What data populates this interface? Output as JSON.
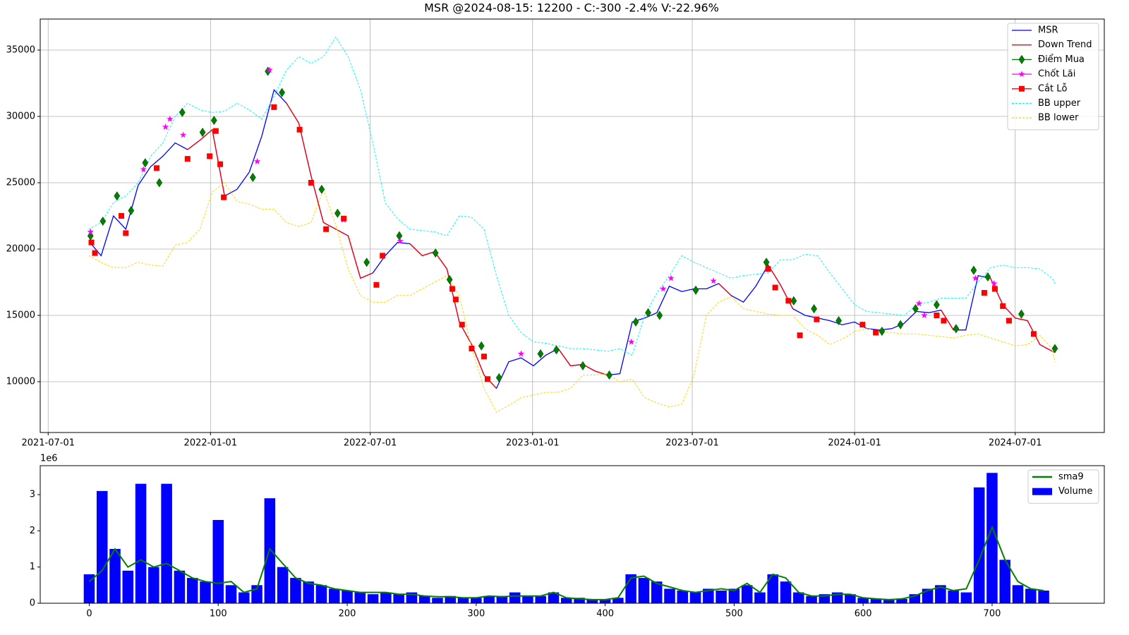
{
  "chart_data": [
    {
      "type": "line",
      "title": "MSR @2024-08-15: 12200 - C:-300 -2.4% V:-22.96%",
      "x": [
        "2021-08-16",
        "2021-08-30",
        "2021-09-13",
        "2021-09-27",
        "2021-10-11",
        "2021-10-25",
        "2021-11-08",
        "2021-11-22",
        "2021-12-06",
        "2021-12-20",
        "2022-01-03",
        "2022-01-17",
        "2022-01-31",
        "2022-02-14",
        "2022-02-28",
        "2022-03-14",
        "2022-03-28",
        "2022-04-11",
        "2022-04-25",
        "2022-05-09",
        "2022-05-23",
        "2022-06-06",
        "2022-06-20",
        "2022-07-04",
        "2022-07-18",
        "2022-08-01",
        "2022-08-15",
        "2022-08-29",
        "2022-09-12",
        "2022-09-26",
        "2022-10-10",
        "2022-10-24",
        "2022-11-07",
        "2022-11-21",
        "2022-12-05",
        "2022-12-19",
        "2023-01-02",
        "2023-01-16",
        "2023-01-30",
        "2023-02-13",
        "2023-02-27",
        "2023-03-13",
        "2023-03-27",
        "2023-04-10",
        "2023-04-24",
        "2023-05-08",
        "2023-05-22",
        "2023-06-05",
        "2023-06-19",
        "2023-07-03",
        "2023-07-17",
        "2023-07-31",
        "2023-08-14",
        "2023-08-28",
        "2023-09-11",
        "2023-09-25",
        "2023-10-09",
        "2023-10-23",
        "2023-11-06",
        "2023-11-20",
        "2023-12-04",
        "2023-12-18",
        "2024-01-01",
        "2024-01-15",
        "2024-01-29",
        "2024-02-12",
        "2024-02-26",
        "2024-03-11",
        "2024-03-25",
        "2024-04-08",
        "2024-04-22",
        "2024-05-06",
        "2024-05-20",
        "2024-06-03",
        "2024-06-17",
        "2024-07-01",
        "2024-07-15",
        "2024-07-29",
        "2024-08-12",
        "2024-08-15"
      ],
      "series": [
        {
          "name": "MSR",
          "kind": "line",
          "color": "#0000ff",
          "values": [
            20600,
            19500,
            22500,
            21500,
            24800,
            26200,
            27000,
            28000,
            27500,
            28200,
            29000,
            24000,
            24500,
            25800,
            28500,
            32000,
            31000,
            29500,
            25500,
            22000,
            21500,
            21000,
            17800,
            18200,
            19500,
            20500,
            20400,
            19500,
            19800,
            18500,
            14500,
            12800,
            10500,
            9500,
            11500,
            11800,
            11200,
            12000,
            12500,
            11200,
            11300,
            10800,
            10500,
            10600,
            14500,
            14800,
            15200,
            17200,
            16800,
            17000,
            17000,
            17400,
            16500,
            16000,
            17200,
            18800,
            17300,
            15500,
            15000,
            14800,
            14600,
            14300,
            14500,
            14000,
            13900,
            14000,
            14400,
            15300,
            15200,
            15400,
            13900,
            13900,
            18000,
            17800,
            15800,
            14800,
            14600,
            12800,
            12300,
            12200
          ]
        },
        {
          "name": "Down Trend",
          "kind": "line",
          "color": "#ff0000",
          "values": [
            null,
            null,
            null,
            null,
            null,
            null,
            null,
            null,
            27500,
            28200,
            29000,
            24000,
            null,
            null,
            null,
            null,
            31000,
            29500,
            25500,
            22000,
            21500,
            21000,
            17800,
            18200,
            null,
            null,
            20400,
            19500,
            19800,
            18500,
            14500,
            12800,
            10500,
            9500,
            null,
            null,
            null,
            null,
            12500,
            11200,
            11300,
            10800,
            10500,
            null,
            null,
            null,
            null,
            null,
            null,
            null,
            null,
            17400,
            16500,
            null,
            null,
            18800,
            17300,
            15500,
            null,
            null,
            null,
            null,
            null,
            null,
            null,
            null,
            null,
            null,
            null,
            15400,
            13900,
            null,
            null,
            17800,
            15800,
            14800,
            14600,
            12800,
            12300,
            12200
          ]
        },
        {
          "name": "Điểm Mua",
          "kind": "scatter",
          "marker": "diamond",
          "color": "#008000",
          "x": [
            "2021-08-18",
            "2021-09-01",
            "2021-09-17",
            "2021-10-03",
            "2021-10-19",
            "2021-11-04",
            "2021-11-30",
            "2021-12-23",
            "2022-01-05",
            "2022-02-18",
            "2022-03-07",
            "2022-03-23",
            "2022-05-07",
            "2022-05-25",
            "2022-06-27",
            "2022-08-03",
            "2022-09-13",
            "2022-09-29",
            "2022-11-04",
            "2022-11-24",
            "2023-01-10",
            "2023-01-28",
            "2023-02-27",
            "2023-03-29",
            "2023-04-28",
            "2023-05-12",
            "2023-05-25",
            "2023-07-05",
            "2023-09-23",
            "2023-10-24",
            "2023-11-16",
            "2023-12-14",
            "2024-02-01",
            "2024-02-22",
            "2024-03-10",
            "2024-04-03",
            "2024-04-25",
            "2024-05-15",
            "2024-05-31",
            "2024-07-08",
            "2024-08-15"
          ],
          "values": [
            21000,
            22100,
            24000,
            22900,
            26500,
            25000,
            30300,
            28800,
            29700,
            25400,
            33400,
            31800,
            24500,
            22700,
            19000,
            21000,
            19700,
            17700,
            12700,
            10300,
            12100,
            12400,
            11200,
            10500,
            14500,
            15200,
            15000,
            16900,
            19000,
            16100,
            15500,
            14600,
            13800,
            14300,
            15500,
            15800,
            14000,
            18400,
            17900,
            15100,
            12500
          ]
        },
        {
          "name": "Chốt Lãi",
          "kind": "scatter",
          "marker": "star",
          "color": "#ff00ff",
          "x": [
            "2021-08-18",
            "2021-10-17",
            "2021-11-11",
            "2021-11-16",
            "2021-12-01",
            "2022-02-23",
            "2022-03-09",
            "2022-06-01",
            "2022-08-04",
            "2022-12-19",
            "2023-04-23",
            "2023-05-29",
            "2023-06-07",
            "2023-07-25",
            "2024-03-14",
            "2024-03-20",
            "2024-05-17",
            "2024-06-07"
          ],
          "values": [
            21300,
            26000,
            29200,
            29800,
            28600,
            26600,
            33500,
            22200,
            20600,
            12100,
            13000,
            17000,
            17800,
            17600,
            15900,
            15000,
            17800,
            17400
          ]
        },
        {
          "name": "Cắt Lỗ",
          "kind": "scatter",
          "marker": "square",
          "color": "#ff0000",
          "x": [
            "2021-08-19",
            "2021-08-23",
            "2021-09-22",
            "2021-09-27",
            "2021-11-01",
            "2021-12-06",
            "2021-12-31",
            "2022-01-07",
            "2022-01-12",
            "2022-01-16",
            "2022-03-14",
            "2022-04-12",
            "2022-04-25",
            "2022-05-12",
            "2022-06-01",
            "2022-07-08",
            "2022-07-15",
            "2022-10-02",
            "2022-10-06",
            "2022-10-13",
            "2022-10-24",
            "2022-11-07",
            "2022-11-11",
            "2023-09-25",
            "2023-10-03",
            "2023-10-18",
            "2023-10-31",
            "2023-11-19",
            "2024-01-10",
            "2024-01-25",
            "2024-04-03",
            "2024-04-11",
            "2024-05-27",
            "2024-06-08",
            "2024-06-17",
            "2024-06-24",
            "2024-07-22"
          ],
          "values": [
            20500,
            19700,
            22500,
            21200,
            26100,
            26800,
            27000,
            28900,
            26400,
            23900,
            30700,
            29000,
            25000,
            21500,
            22300,
            17300,
            19500,
            17000,
            16200,
            14300,
            12500,
            11900,
            10200,
            18500,
            17100,
            16100,
            13500,
            14700,
            14300,
            13700,
            15000,
            14600,
            16700,
            17000,
            15700,
            14600,
            13600
          ]
        },
        {
          "name": "BB upper",
          "kind": "line",
          "style": "dashed",
          "color": "#00ffff",
          "values": [
            21500,
            22000,
            23500,
            24000,
            25000,
            27000,
            28000,
            30000,
            31000,
            30500,
            30300,
            30400,
            31000,
            30500,
            29800,
            31500,
            33500,
            34500,
            34000,
            34500,
            36000,
            34500,
            32000,
            28000,
            23500,
            22300,
            21500,
            21400,
            21300,
            21000,
            22500,
            22400,
            21500,
            18000,
            15000,
            13700,
            13000,
            12900,
            12700,
            12500,
            12500,
            12400,
            12300,
            12500,
            12000,
            15000,
            16700,
            18000,
            19500,
            19000,
            18600,
            18200,
            17800,
            18000,
            18100,
            18200,
            19200,
            19200,
            19600,
            19500,
            18200,
            17000,
            15800,
            15300,
            15200,
            15100,
            15000,
            15800,
            16000,
            16300,
            16300,
            16300,
            17500,
            18600,
            18800,
            18600,
            18600,
            18500,
            17800,
            17400
          ]
        },
        {
          "name": "BB lower",
          "kind": "line",
          "style": "dashed",
          "color": "#ffd700",
          "values": [
            19500,
            19000,
            18600,
            18600,
            19000,
            18800,
            18700,
            20300,
            20500,
            21500,
            24300,
            25000,
            23600,
            23400,
            23000,
            23000,
            22000,
            21700,
            22000,
            24500,
            21800,
            18500,
            16500,
            16000,
            16000,
            16500,
            16500,
            17000,
            17500,
            18000,
            16500,
            12500,
            9500,
            7700,
            8200,
            8800,
            9000,
            9200,
            9200,
            9500,
            10500,
            10500,
            10600,
            10000,
            10200,
            8800,
            8400,
            8100,
            8300,
            10500,
            15000,
            16000,
            16400,
            15500,
            15300,
            15100,
            15000,
            15000,
            14000,
            13500,
            12800,
            13200,
            13800,
            14000,
            13800,
            13700,
            13600,
            13600,
            13500,
            13400,
            13300,
            13500,
            13600,
            13300,
            13000,
            12700,
            12800,
            13500,
            12500,
            11500
          ]
        }
      ],
      "xlim": [
        "2021-06-22",
        "2024-10-10"
      ],
      "xticks": [
        "2021-07-01",
        "2022-01-01",
        "2022-07-01",
        "2023-01-01",
        "2023-07-01",
        "2024-01-01",
        "2024-07-01"
      ],
      "ylim": [
        6170,
        37340
      ],
      "yticks": [
        10000,
        15000,
        20000,
        25000,
        30000,
        35000
      ],
      "grid": true,
      "legend": "upper right"
    },
    {
      "type": "bar",
      "y_offset_label": "1e6",
      "x": [
        0,
        10,
        20,
        30,
        40,
        50,
        60,
        70,
        80,
        90,
        100,
        110,
        120,
        130,
        140,
        150,
        160,
        170,
        180,
        190,
        200,
        210,
        220,
        230,
        240,
        250,
        260,
        270,
        280,
        290,
        300,
        310,
        320,
        330,
        340,
        350,
        360,
        370,
        380,
        390,
        400,
        410,
        420,
        430,
        440,
        450,
        460,
        470,
        480,
        490,
        500,
        510,
        520,
        530,
        540,
        550,
        560,
        570,
        580,
        590,
        600,
        610,
        620,
        630,
        640,
        650,
        660,
        670,
        680,
        690,
        700,
        710,
        720,
        730,
        740
      ],
      "series": [
        {
          "name": "sma9",
          "kind": "line",
          "color": "#008000",
          "values": [
            600000,
            900000,
            1500000,
            1000000,
            1200000,
            1000000,
            1100000,
            900000,
            700000,
            600000,
            550000,
            600000,
            300000,
            400000,
            1500000,
            1100000,
            700000,
            550000,
            500000,
            400000,
            350000,
            300000,
            300000,
            300000,
            250000,
            250000,
            200000,
            180000,
            180000,
            150000,
            150000,
            200000,
            180000,
            200000,
            200000,
            200000,
            300000,
            150000,
            120000,
            100000,
            100000,
            150000,
            700000,
            750000,
            550000,
            450000,
            350000,
            300000,
            350000,
            400000,
            350000,
            550000,
            300000,
            800000,
            700000,
            300000,
            200000,
            200000,
            250000,
            250000,
            150000,
            120000,
            100000,
            120000,
            200000,
            350000,
            450000,
            350000,
            400000,
            1200000,
            2100000,
            1200000,
            600000,
            400000,
            350000
          ]
        },
        {
          "name": "Volume",
          "kind": "bar",
          "color": "#0000ff",
          "values": [
            800000,
            3100000,
            1500000,
            900000,
            3300000,
            1000000,
            3300000,
            900000,
            700000,
            600000,
            2300000,
            500000,
            300000,
            500000,
            2900000,
            1000000,
            700000,
            600000,
            500000,
            400000,
            350000,
            300000,
            250000,
            300000,
            250000,
            300000,
            200000,
            150000,
            200000,
            150000,
            150000,
            200000,
            200000,
            300000,
            200000,
            200000,
            300000,
            150000,
            150000,
            100000,
            100000,
            150000,
            800000,
            700000,
            600000,
            400000,
            350000,
            300000,
            400000,
            350000,
            400000,
            500000,
            300000,
            800000,
            600000,
            300000,
            200000,
            250000,
            300000,
            250000,
            150000,
            120000,
            100000,
            120000,
            250000,
            400000,
            500000,
            350000,
            300000,
            3200000,
            3600000,
            1200000,
            500000,
            400000,
            350000
          ]
        }
      ],
      "xlim": [
        -38,
        787
      ],
      "xticks": [
        0,
        100,
        200,
        300,
        400,
        500,
        600,
        700
      ],
      "ylim": [
        0,
        3800000
      ],
      "yticks": [
        {
          "value": 0,
          "label": "0"
        },
        {
          "value": 1000000,
          "label": "1"
        },
        {
          "value": 2000000,
          "label": "2"
        },
        {
          "value": 3000000,
          "label": "3"
        }
      ],
      "grid": false,
      "legend": "upper right"
    }
  ]
}
